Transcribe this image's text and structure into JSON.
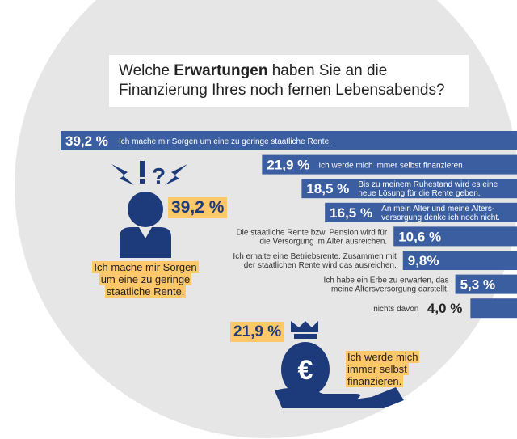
{
  "title": {
    "normal1": "Welche ",
    "bold": "Erwartungen",
    "normal2": " haben Sie an die",
    "line2": "Finanzierung Ihres noch fernen Lebensabends?"
  },
  "chart_data": {
    "type": "bar",
    "orientation": "horizontal",
    "unit": "%",
    "categories": [
      "Ich mache mir Sorgen um eine zu geringe staatliche Rente.",
      "Ich werde mich immer selbst finanzieren.",
      "Bis zu meinem Ruhestand wird es eine neue Lösung für die Rente geben.",
      "An mein Alter und meine Alters-versorgung denke ich noch nicht.",
      "Die staatliche Rente bzw. Pension wird für die Versorgung im Alter ausreichen.",
      "Ich erhalte eine Betriebsrente. Zusammen mit der staatlichen Rente wird das ausreichen.",
      "Ich habe ein Erbe zu erwarten, das meine Altersversorgung darstellt.",
      "nichts davon"
    ],
    "label_lines": [
      [
        "Ich mache mir Sorgen um eine zu geringe staatliche Rente."
      ],
      [
        "Ich werde mich immer selbst finanzieren."
      ],
      [
        "Bis zu meinem Ruhestand wird es eine",
        "neue Lösung für die Rente geben."
      ],
      [
        "An mein Alter und meine Alters-",
        "versorgung denke ich noch nicht."
      ],
      [
        "Die staatliche Rente bzw. Pension wird für",
        "die Versorgung im Alter ausreichen."
      ],
      [
        "Ich erhalte eine Betriebsrente. Zusammen mit",
        "der staatlichen Rente wird das ausreichen."
      ],
      [
        "Ich habe ein Erbe zu erwarten, das",
        "meine Altersversorgung darstellt."
      ],
      [
        "nichts davon"
      ]
    ],
    "values": [
      39.2,
      21.9,
      18.5,
      16.5,
      10.6,
      9.8,
      5.3,
      4.0
    ],
    "value_labels": [
      "39,2 %",
      "21,9 %",
      "18,5 %",
      "16,5 %",
      "10,6 %",
      "9,8%",
      "5,3 %",
      "4,0 %"
    ],
    "bar_color": "#3b5ea0"
  },
  "highlights": {
    "worry": {
      "value": "39,2 %",
      "caption_lines": [
        "Ich mache mir Sorgen",
        "um eine zu geringe",
        "staatliche Rente."
      ],
      "icon": "worried-person-icon"
    },
    "self": {
      "value": "21,9 %",
      "caption_lines": [
        "Ich werde mich",
        "immer selbst",
        "finanzieren."
      ],
      "icon": "euro-money-bag-hand-icon",
      "symbol": "€"
    },
    "accent": "#fcc86a",
    "icon_color": "#1d3a7a"
  }
}
